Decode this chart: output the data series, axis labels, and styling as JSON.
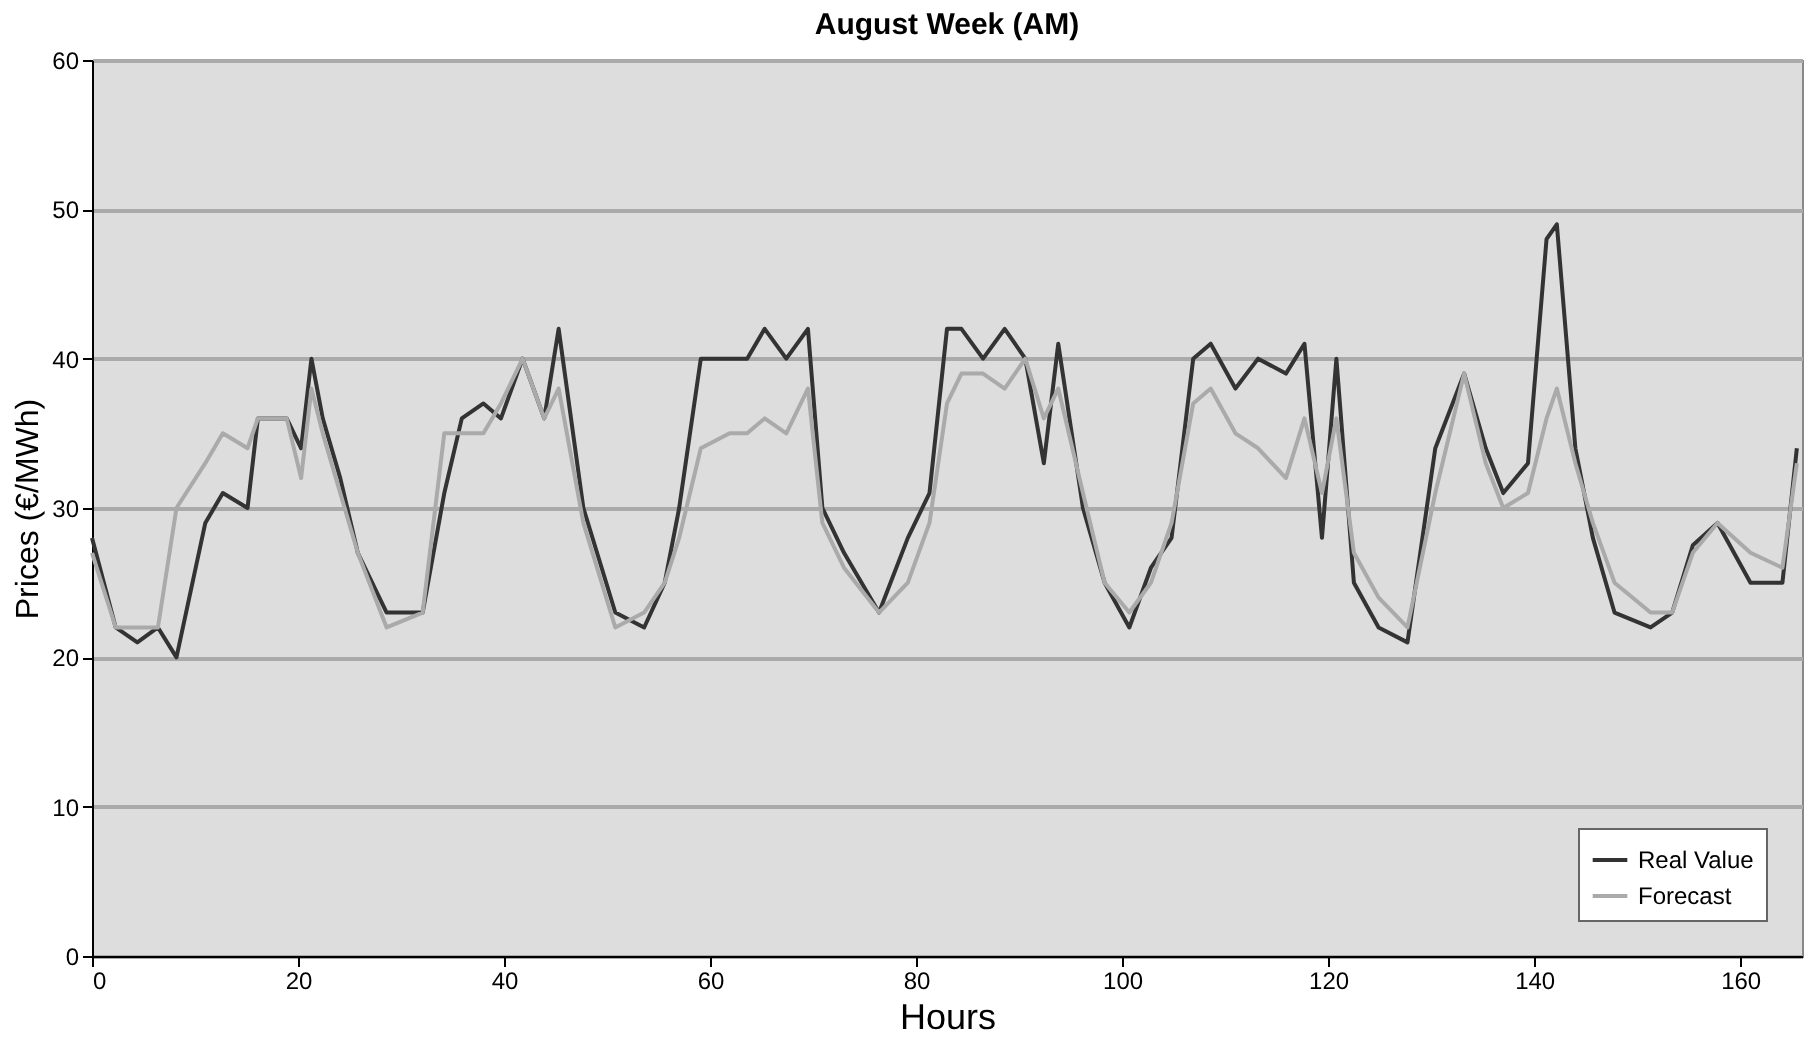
{
  "chart_data": {
    "type": "line",
    "title": "August Week (AM)",
    "xlabel": "Hours",
    "ylabel": "Prices (€/MWh)",
    "x": [
      0,
      2.3,
      4.4,
      6.4,
      8.2,
      11,
      12.7,
      15.1,
      16.1,
      18.9,
      20.3,
      21.3,
      22.4,
      24.1,
      25.8,
      28.6,
      32.1,
      34.2,
      35.9,
      38,
      39.7,
      41.8,
      43.9,
      45.3,
      47.7,
      50.8,
      53.6,
      55.6,
      57,
      59.1,
      61.9,
      63.6,
      65.3,
      67.4,
      69.5,
      70.9,
      73,
      76.4,
      79.2,
      81.3,
      83,
      84.4,
      86.5,
      88.6,
      90.6,
      92.4,
      93.8,
      96.2,
      98.3,
      100.7,
      102.8,
      104.8,
      106.9,
      108.6,
      111,
      113.2,
      115.9,
      117.7,
      119.4,
      120.8,
      122.5,
      124.9,
      127.7,
      130.4,
      133.2,
      135.3,
      137,
      139.4,
      141.2,
      142.2,
      144,
      145.7,
      147.8,
      151.3,
      153.4,
      155.4,
      157.8,
      161,
      164.1,
      165.5
    ],
    "series": [
      {
        "name": "Real Value",
        "color": "#333333",
        "values": [
          28,
          22,
          21,
          22,
          20,
          29,
          31,
          30,
          36,
          36,
          34,
          40,
          36,
          32,
          27,
          23,
          23,
          31,
          36,
          37,
          36,
          40,
          36,
          42,
          30,
          23,
          22,
          25,
          30,
          40,
          40,
          40,
          42,
          40,
          42,
          30,
          27,
          23,
          28,
          31,
          42,
          42,
          40,
          42,
          40,
          33,
          41,
          30,
          25,
          22,
          26,
          28,
          40,
          41,
          38,
          40,
          39,
          41,
          28,
          40,
          25,
          22,
          21,
          34,
          39,
          34,
          31,
          33,
          48,
          49,
          34,
          28,
          23,
          22,
          23,
          27.5,
          29,
          25,
          25,
          34
        ]
      },
      {
        "name": "Forecast",
        "color": "#aaaaaa",
        "values": [
          27,
          22,
          22,
          22,
          30,
          33,
          35,
          34,
          36,
          36,
          32,
          38,
          35,
          31,
          27,
          22,
          23,
          35,
          35,
          35,
          37,
          40,
          36,
          38,
          29,
          22,
          23,
          25,
          28,
          34,
          35,
          35,
          36,
          35,
          38,
          29,
          26,
          23,
          25,
          29,
          37,
          39,
          39,
          38,
          40,
          36,
          38,
          31,
          25,
          23,
          25,
          29,
          37,
          38,
          35,
          34,
          32,
          36,
          31,
          36,
          27,
          24,
          22,
          31,
          39,
          33,
          30,
          31,
          36,
          38,
          33,
          29,
          25,
          23,
          23,
          27,
          29,
          27,
          26,
          33
        ]
      }
    ],
    "xlim": [
      0,
      166
    ],
    "ylim": [
      0,
      60
    ],
    "xticks": [
      0,
      20,
      40,
      60,
      80,
      100,
      120,
      140,
      160
    ],
    "yticks": [
      0,
      10,
      20,
      30,
      40,
      50,
      60
    ],
    "grid": "y",
    "legend": "bottom right",
    "line_style": "solid",
    "marker": "none"
  }
}
